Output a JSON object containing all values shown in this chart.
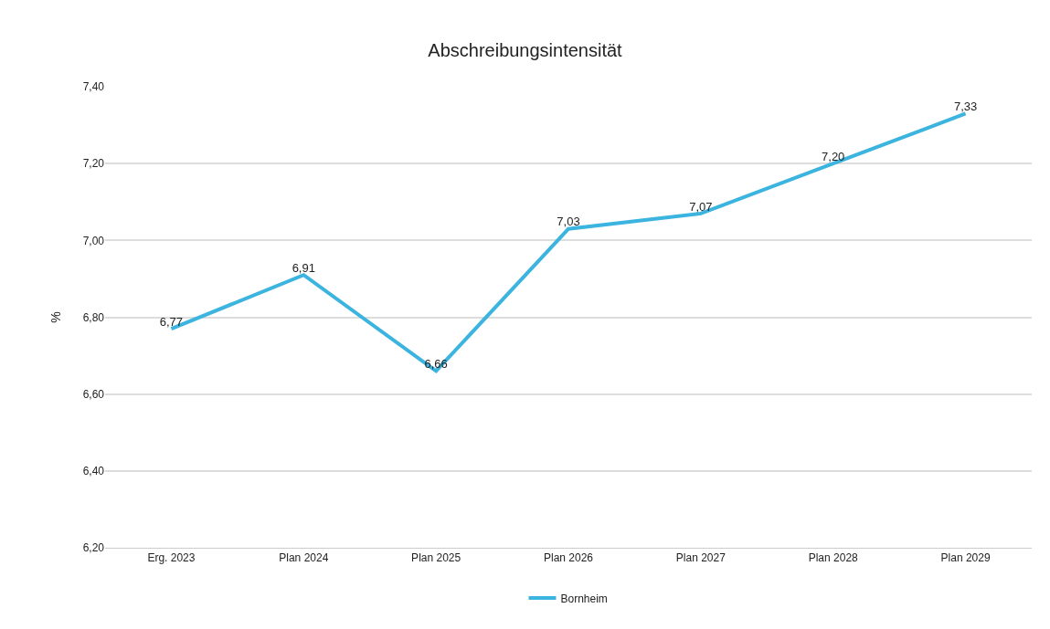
{
  "chart_data": {
    "type": "line",
    "title": "Abschreibungsintensität",
    "ylabel": "%",
    "categories": [
      "Erg. 2023",
      "Plan 2024",
      "Plan 2025",
      "Plan 2026",
      "Plan 2027",
      "Plan 2028",
      "Plan 2029"
    ],
    "series": [
      {
        "name": "Bornheim",
        "color": "#3cb4e0",
        "values": [
          6.77,
          6.91,
          6.66,
          7.03,
          7.07,
          7.2,
          7.33
        ],
        "value_labels": [
          "6,77",
          "6,91",
          "6,66",
          "7,03",
          "7,07",
          "7,20",
          "7,33"
        ]
      }
    ],
    "ylim": [
      6.2,
      7.4
    ],
    "yticks": [
      {
        "value": 6.2,
        "label": "6,20"
      },
      {
        "value": 6.4,
        "label": "6,40"
      },
      {
        "value": 6.6,
        "label": "6,60"
      },
      {
        "value": 6.8,
        "label": "6,80"
      },
      {
        "value": 7.0,
        "label": "7,00"
      },
      {
        "value": 7.2,
        "label": "7,20"
      },
      {
        "value": 7.4,
        "label": "7,40"
      }
    ],
    "grid": "y",
    "legend": "bottom",
    "marker": "none",
    "line_style": "solid"
  }
}
